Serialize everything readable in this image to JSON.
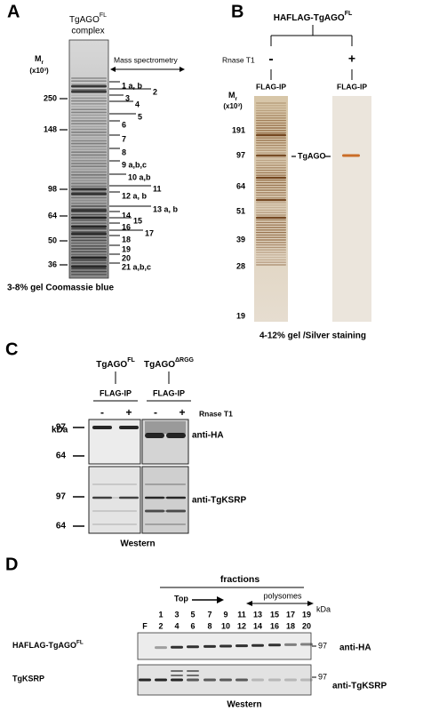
{
  "panel_a": {
    "label": "A",
    "title": "TgAGO",
    "title_sup": "FL",
    "subtitle": "complex",
    "mr": "M",
    "mr_sub": "r",
    "mr_scale": "(x10³)",
    "markers": [
      "250",
      "148",
      "98",
      "64",
      "50",
      "36"
    ],
    "method": "Mass spectrometry",
    "bands": [
      "1 a, b",
      "2",
      "3",
      "4",
      "5",
      "6",
      "7",
      "8",
      "9 a,b,c",
      "10 a,b",
      "11",
      "12 a, b",
      "13 a, b",
      "14",
      "15",
      "16",
      "17",
      "18",
      "19",
      "20",
      "21 a,b,c"
    ],
    "caption": "3-8% gel Coomassie blue"
  },
  "panel_b": {
    "label": "B",
    "construct": "HAFLAG-TgAGO",
    "construct_sup": "FL",
    "treatment": "Rnase T1",
    "conditions": [
      "-",
      "+"
    ],
    "lanes": [
      "FLAG-IP",
      "FLAG-IP"
    ],
    "mr": "M",
    "mr_sub": "r",
    "mr_scale": "(x10³)",
    "markers": [
      "191",
      "97",
      "64",
      "51",
      "39",
      "28",
      "19"
    ],
    "band_label": "TgAGO",
    "caption": "4-12% gel /Silver staining"
  },
  "panel_c": {
    "label": "C",
    "constructs": [
      {
        "name": "TgAGO",
        "sup": "FL"
      },
      {
        "name": "TgAGO",
        "sup": "ΔRGG"
      }
    ],
    "lanes": [
      "FLAG-IP",
      "FLAG-IP"
    ],
    "conditions": [
      "-",
      "+",
      "-",
      "+"
    ],
    "treatment": "Rnase T1",
    "unit": "kDa",
    "markers_top": [
      "97",
      "64"
    ],
    "markers_bottom": [
      "97",
      "64"
    ],
    "antibodies": [
      "anti-HA",
      "anti-TgKSRP"
    ],
    "caption": "Western"
  },
  "panel_d": {
    "label": "D",
    "header": "fractions",
    "top": "Top",
    "polysomes": "polysomes",
    "unit": "kDa",
    "input": "F",
    "fractions": [
      "1",
      "2",
      "3",
      "4",
      "5",
      "6",
      "7",
      "8",
      "9",
      "10",
      "11",
      "12",
      "13",
      "14",
      "15",
      "16",
      "17",
      "18",
      "19",
      "20"
    ],
    "rows": [
      {
        "protein": "HAFLAG-TgAGO",
        "sup": "FL",
        "marker": "97",
        "antibody": "anti-HA"
      },
      {
        "protein": "TgKSRP",
        "marker": "97",
        "antibody": "anti-TgKSRP"
      }
    ],
    "caption": "Western"
  }
}
